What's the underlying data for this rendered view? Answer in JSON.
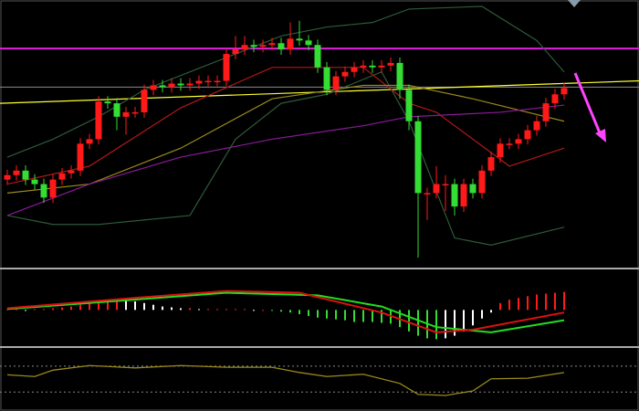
{
  "chart_data": [
    {
      "type": "candlestick",
      "ylim": [
        0,
        290
      ],
      "up_color": "#ff1a1a",
      "down_color": "#33dd33",
      "open": [
        95,
        100,
        105,
        95,
        90,
        75,
        95,
        102,
        105,
        135,
        140,
        182,
        180,
        165,
        170,
        170,
        195,
        200,
        198,
        202,
        200,
        202,
        205,
        205,
        205,
        235,
        240,
        245,
        243,
        245,
        247,
        240,
        252,
        250,
        245,
        220,
        195,
        210,
        215,
        220,
        222,
        220,
        222,
        225,
        195,
        160,
        80,
        80,
        90,
        90,
        65,
        90,
        80,
        105,
        120,
        135,
        135,
        140,
        150,
        160,
        180,
        190
      ],
      "high": [
        106,
        111,
        111,
        101,
        96,
        101,
        108,
        111,
        141,
        146,
        188,
        188,
        186,
        176,
        176,
        201,
        206,
        206,
        208,
        208,
        208,
        211,
        211,
        211,
        241,
        255,
        255,
        251,
        251,
        253,
        253,
        270,
        272,
        256,
        251,
        226,
        216,
        221,
        226,
        228,
        228,
        228,
        231,
        231,
        201,
        166,
        86,
        110,
        100,
        96,
        96,
        96,
        111,
        126,
        141,
        141,
        146,
        156,
        166,
        186,
        196,
        203
      ],
      "low": [
        89,
        94,
        89,
        84,
        69,
        69,
        89,
        96,
        99,
        129,
        134,
        174,
        150,
        145,
        164,
        164,
        189,
        192,
        192,
        194,
        194,
        196,
        199,
        199,
        199,
        229,
        234,
        237,
        237,
        239,
        234,
        234,
        244,
        239,
        214,
        189,
        189,
        204,
        209,
        214,
        214,
        214,
        216,
        185,
        150,
        8,
        50,
        74,
        60,
        55,
        59,
        74,
        74,
        99,
        114,
        129,
        129,
        134,
        144,
        154,
        174,
        184
      ],
      "close": [
        100,
        105,
        95,
        90,
        75,
        95,
        102,
        105,
        135,
        140,
        182,
        180,
        165,
        170,
        170,
        195,
        200,
        198,
        202,
        200,
        202,
        205,
        205,
        205,
        235,
        240,
        245,
        243,
        245,
        247,
        240,
        252,
        250,
        245,
        220,
        195,
        210,
        215,
        220,
        222,
        220,
        222,
        225,
        195,
        160,
        80,
        80,
        90,
        90,
        65,
        90,
        80,
        105,
        120,
        135,
        135,
        140,
        150,
        160,
        180,
        190,
        197
      ],
      "hlines": [
        {
          "value": 241,
          "color": "#e020e0"
        },
        {
          "value": 198,
          "color": "#8a8a8a"
        }
      ],
      "lines": [
        {
          "color": "#ffff33",
          "x": [
            -0.8,
            69.2
          ],
          "values": [
            180,
            205
          ]
        },
        {
          "color": "#2e5a3a",
          "x": [
            0,
            5,
            10,
            15,
            20,
            25,
            30,
            35,
            40,
            44,
            52,
            58,
            61
          ],
          "values": [
            120,
            140,
            165,
            195,
            215,
            235,
            255,
            265,
            270,
            285,
            288,
            250,
            215
          ]
        },
        {
          "color": "#2e5a3a",
          "x": [
            0,
            5,
            10,
            20,
            25,
            30,
            35,
            41,
            44,
            49,
            53,
            61
          ],
          "values": [
            55,
            45,
            45,
            55,
            140,
            180,
            190,
            215,
            160,
            30,
            22,
            42
          ]
        },
        {
          "color": "#b01818",
          "x": [
            0,
            9,
            19,
            29,
            39,
            44,
            47,
            55,
            61
          ],
          "values": [
            90,
            110,
            175,
            220,
            220,
            180,
            170,
            110,
            130
          ]
        },
        {
          "color": "#9a8a1a",
          "x": [
            0,
            9,
            19,
            29,
            39,
            44,
            51,
            61
          ],
          "values": [
            80,
            90,
            130,
            185,
            200,
            200,
            185,
            160
          ]
        },
        {
          "color": "#8a1a9a",
          "x": [
            0,
            9,
            19,
            29,
            39,
            44,
            54,
            61
          ],
          "values": [
            55,
            90,
            120,
            140,
            155,
            165,
            170,
            178
          ]
        }
      ]
    },
    {
      "type": "macd",
      "ylim": [
        -40,
        45
      ],
      "up_color": "#ff1a1a",
      "down_color": "#33dd33",
      "fade_color": "#ffffff",
      "values": [
        1,
        1,
        0,
        1,
        1,
        2,
        3,
        4,
        6,
        8,
        10,
        12,
        13,
        12,
        10,
        8,
        6,
        4,
        3,
        2,
        2,
        1,
        1,
        1,
        1,
        1,
        1,
        0,
        0,
        -1,
        -2,
        -3,
        -5,
        -7,
        -9,
        -10,
        -11,
        -12,
        -14,
        -14,
        -14,
        -15,
        -16,
        -20,
        -25,
        -30,
        -33,
        -34,
        -33,
        -30,
        -25,
        -18,
        -10,
        -3,
        8,
        12,
        14,
        16,
        18,
        19,
        20,
        21
      ],
      "lines": [
        {
          "color": "#22dd22",
          "x": [
            0,
            14,
            24,
            34,
            41,
            47,
            53,
            61
          ],
          "values": [
            1,
            12,
            20,
            17,
            4,
            -20,
            -26,
            -12
          ]
        },
        {
          "color": "#dd1111",
          "x": [
            0,
            14,
            24,
            32,
            41,
            47,
            51,
            61
          ],
          "values": [
            2,
            14,
            22,
            20,
            -3,
            -26,
            -23,
            -3
          ]
        }
      ]
    },
    {
      "type": "line",
      "ylim": [
        0,
        100
      ],
      "levels": [
        70,
        25
      ],
      "color": "#9a8a1a",
      "x": [
        0,
        3,
        5,
        9,
        14,
        19,
        24,
        29,
        32,
        35,
        39,
        43,
        45,
        48,
        51,
        53,
        57,
        61
      ],
      "values": [
        55,
        52,
        63,
        71,
        67,
        71,
        68,
        68,
        59,
        52,
        56,
        40,
        21,
        19,
        27,
        48,
        49,
        59
      ]
    }
  ]
}
